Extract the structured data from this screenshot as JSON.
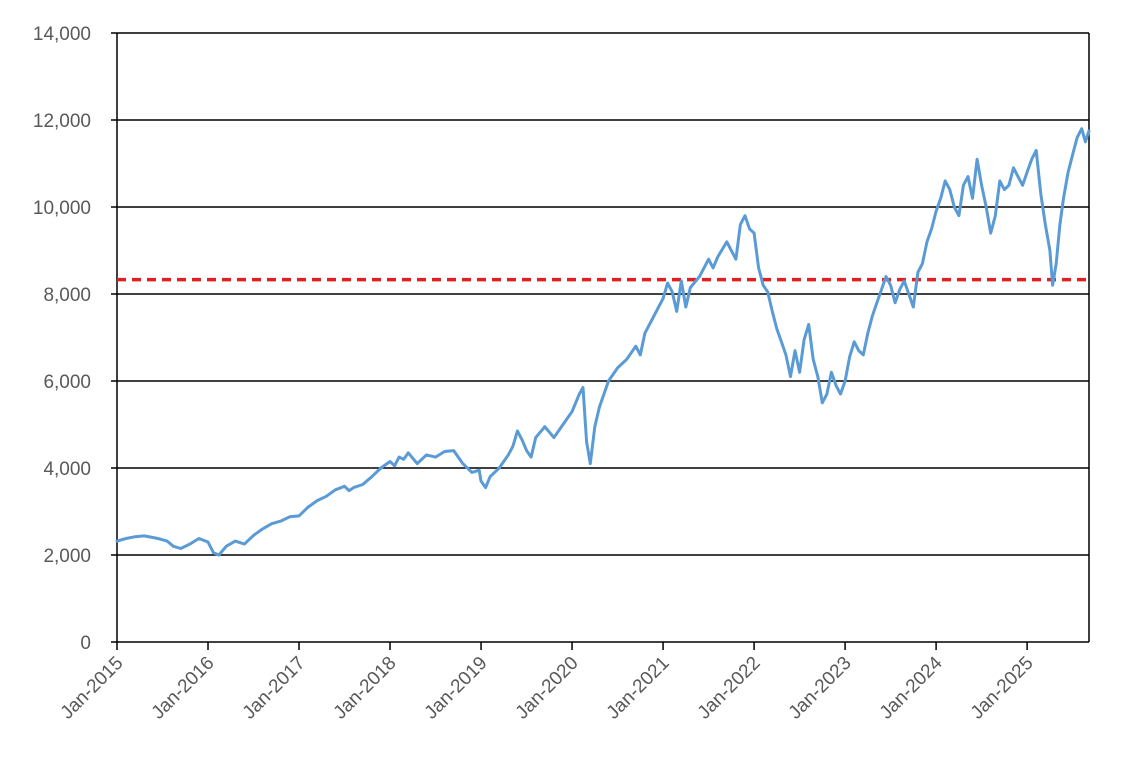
{
  "chart_data": {
    "type": "line",
    "title": "",
    "xlabel": "",
    "ylabel": "",
    "ylim": [
      0,
      14000
    ],
    "yticks": [
      0,
      2000,
      4000,
      6000,
      8000,
      10000,
      12000,
      14000
    ],
    "ytick_labels": [
      "0",
      "2,000",
      "4,000",
      "6,000",
      "8,000",
      "10,000",
      "12,000",
      "14,000"
    ],
    "xlim": [
      2015.0,
      2025.68
    ],
    "xticks": [
      2015,
      2016,
      2017,
      2018,
      2019,
      2020,
      2021,
      2022,
      2023,
      2024,
      2025
    ],
    "xtick_labels": [
      "Jan-2015",
      "Jan-2016",
      "Jan-2017",
      "Jan-2018",
      "Jan-2019",
      "Jan-2020",
      "Jan-2021",
      "Jan-2022",
      "Jan-2023",
      "Jan-2024",
      "Jan-2025"
    ],
    "grid": "horizontal",
    "legend": "none",
    "reference_line": {
      "y": 8330,
      "color": "#e02020",
      "style": "dashed"
    },
    "series": [
      {
        "color": "#5b9bd5",
        "x": [
          2015.0,
          2015.1,
          2015.2,
          2015.3,
          2015.45,
          2015.55,
          2015.62,
          2015.7,
          2015.8,
          2015.9,
          2016.0,
          2016.06,
          2016.12,
          2016.2,
          2016.3,
          2016.4,
          2016.5,
          2016.6,
          2016.7,
          2016.8,
          2016.9,
          2017.0,
          2017.1,
          2017.2,
          2017.3,
          2017.4,
          2017.5,
          2017.55,
          2017.6,
          2017.7,
          2017.8,
          2017.9,
          2018.0,
          2018.05,
          2018.1,
          2018.15,
          2018.2,
          2018.3,
          2018.4,
          2018.5,
          2018.6,
          2018.7,
          2018.8,
          2018.9,
          2018.98,
          2019.0,
          2019.05,
          2019.1,
          2019.2,
          2019.3,
          2019.35,
          2019.4,
          2019.45,
          2019.5,
          2019.55,
          2019.6,
          2019.7,
          2019.8,
          2019.9,
          2020.0,
          2020.08,
          2020.12,
          2020.16,
          2020.2,
          2020.25,
          2020.3,
          2020.4,
          2020.5,
          2020.6,
          2020.7,
          2020.75,
          2020.8,
          2020.9,
          2021.0,
          2021.05,
          2021.1,
          2021.15,
          2021.2,
          2021.25,
          2021.3,
          2021.4,
          2021.5,
          2021.55,
          2021.6,
          2021.7,
          2021.75,
          2021.8,
          2021.85,
          2021.9,
          2021.95,
          2022.0,
          2022.05,
          2022.1,
          2022.15,
          2022.2,
          2022.25,
          2022.3,
          2022.35,
          2022.4,
          2022.45,
          2022.5,
          2022.55,
          2022.6,
          2022.65,
          2022.7,
          2022.75,
          2022.8,
          2022.85,
          2022.9,
          2022.95,
          2023.0,
          2023.05,
          2023.1,
          2023.15,
          2023.2,
          2023.25,
          2023.3,
          2023.35,
          2023.4,
          2023.45,
          2023.5,
          2023.55,
          2023.6,
          2023.65,
          2023.7,
          2023.75,
          2023.8,
          2023.85,
          2023.9,
          2023.95,
          2024.0,
          2024.05,
          2024.1,
          2024.15,
          2024.2,
          2024.25,
          2024.3,
          2024.35,
          2024.4,
          2024.45,
          2024.5,
          2024.55,
          2024.6,
          2024.65,
          2024.7,
          2024.75,
          2024.8,
          2024.85,
          2024.9,
          2024.95,
          2025.0,
          2025.05,
          2025.1,
          2025.15,
          2025.2,
          2025.25,
          2025.28,
          2025.32,
          2025.36,
          2025.4,
          2025.45,
          2025.5,
          2025.55,
          2025.6,
          2025.64,
          2025.68
        ],
        "y": [
          2320,
          2380,
          2420,
          2440,
          2380,
          2320,
          2200,
          2150,
          2250,
          2380,
          2300,
          2050,
          2000,
          2200,
          2320,
          2250,
          2450,
          2600,
          2720,
          2780,
          2880,
          2900,
          3100,
          3250,
          3350,
          3500,
          3580,
          3480,
          3550,
          3620,
          3800,
          4000,
          4150,
          4050,
          4250,
          4200,
          4350,
          4100,
          4300,
          4250,
          4380,
          4400,
          4100,
          3900,
          3950,
          3700,
          3550,
          3800,
          4000,
          4300,
          4500,
          4850,
          4650,
          4400,
          4250,
          4700,
          4950,
          4700,
          5000,
          5300,
          5700,
          5850,
          4600,
          4100,
          4950,
          5400,
          6000,
          6300,
          6500,
          6800,
          6600,
          7100,
          7500,
          7900,
          8250,
          8050,
          7600,
          8300,
          7700,
          8150,
          8400,
          8800,
          8600,
          8850,
          9200,
          9000,
          8800,
          9600,
          9800,
          9500,
          9400,
          8600,
          8200,
          8050,
          7600,
          7200,
          6900,
          6600,
          6100,
          6700,
          6200,
          6950,
          7300,
          6500,
          6100,
          5500,
          5700,
          6200,
          5900,
          5700,
          6000,
          6550,
          6900,
          6700,
          6600,
          7100,
          7500,
          7800,
          8100,
          8400,
          8200,
          7800,
          8100,
          8300,
          8000,
          7700,
          8500,
          8700,
          9200,
          9500,
          9900,
          10200,
          10600,
          10400,
          10000,
          9800,
          10500,
          10700,
          10200,
          11100,
          10500,
          10000,
          9400,
          9800,
          10600,
          10400,
          10500,
          10900,
          10700,
          10500,
          10800,
          11100,
          11300,
          10300,
          9600,
          9000,
          8200,
          8700,
          9600,
          10200,
          10800,
          11200,
          11600,
          11800,
          11500,
          11750
        ]
      }
    ]
  }
}
